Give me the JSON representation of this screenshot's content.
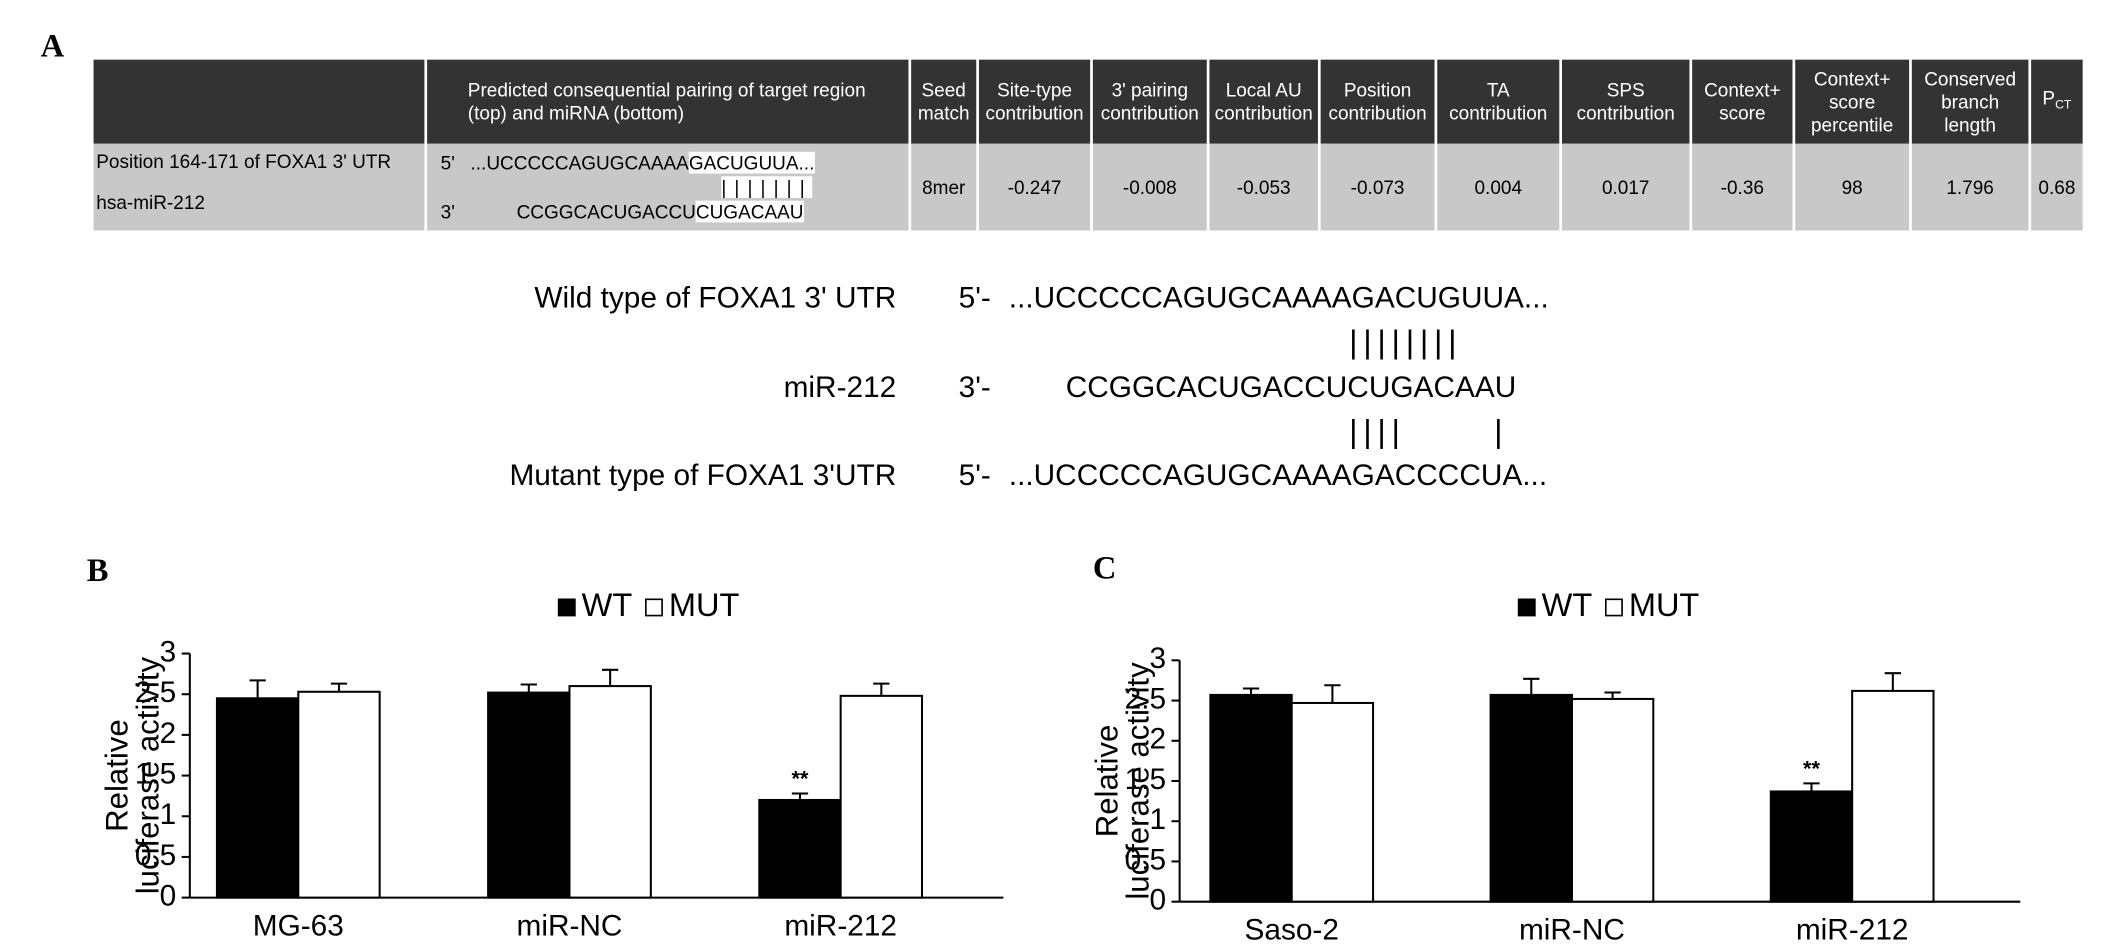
{
  "panel_labels": [
    "A",
    "B",
    "C"
  ],
  "table": {
    "headers": [
      "Predicted consequential pairing of target region (top) and miRNA (bottom)",
      "Seed match",
      "Site-type contribution",
      "3' pairing contribution",
      "Local AU contribution",
      "Position contribution",
      "TA contribution",
      "SPS contribution",
      "Context+ score",
      "Context+ score percentile",
      "Conserved branch length",
      {
        "main": "P",
        "sub": "CT"
      }
    ],
    "row": {
      "target": "Position 164-171 of FOXA1 3' UTR",
      "mirna": "hsa-miR-212",
      "top_end": "5'",
      "top_seq": [
        "...UCCCCCAGUGCAAAA",
        "GACUGUUA..."
      ],
      "pairing": "|||||||",
      "bottom_end": "3'",
      "bottom_seq": [
        "CCGGCACUGACCU",
        "CUGACAAU"
      ],
      "values": [
        "8mer",
        -0.247,
        -0.008,
        -0.053,
        -0.073,
        0.004,
        0.017,
        -0.36,
        98,
        1.796,
        0.68
      ]
    }
  },
  "alignment": [
    {
      "label": "Wild type of FOXA1 3' UTR",
      "end": "5'-",
      "seq": "...UCCCCCAGUGCAAAAGACUGUUA..."
    },
    {
      "pairing": "||||||||"
    },
    {
      "label": "miR-212",
      "end": "3'-",
      "seq": "CCGGCACUGACCUCUGACAAU"
    },
    {
      "pairing": "||||      |"
    },
    {
      "label": "Mutant type of FOXA1 3'UTR",
      "end": "5'-",
      "seq": "...UCCCCCAGUGCAAAAGACCCCUA..."
    }
  ],
  "chart_data": [
    {
      "type": "bar",
      "ylabel": [
        "Relative",
        "luciferase activity"
      ],
      "categories": [
        "MG-63",
        "miR-NC",
        "miR-212"
      ],
      "series": [
        {
          "name": "WT",
          "color": "#000000",
          "values": [
            2.45,
            2.52,
            1.2
          ],
          "errors": [
            0.22,
            0.1,
            0.08
          ]
        },
        {
          "name": "MUT",
          "color": "#ffffff",
          "values": [
            2.53,
            2.6,
            2.48
          ],
          "errors": [
            0.1,
            0.2,
            0.15
          ]
        }
      ],
      "annotation": {
        "text": "**",
        "series": "WT",
        "category": "miR-212"
      },
      "ylim": [
        0,
        3
      ],
      "yticks": [
        0,
        0.5,
        1,
        1.5,
        2,
        2.5,
        3
      ]
    },
    {
      "type": "bar",
      "ylabel": [
        "Relative",
        "luciferase activity"
      ],
      "categories": [
        "Saso-2",
        "miR-NC",
        "miR-212"
      ],
      "series": [
        {
          "name": "WT",
          "color": "#000000",
          "values": [
            2.57,
            2.57,
            1.37
          ],
          "errors": [
            0.08,
            0.2,
            0.1
          ]
        },
        {
          "name": "MUT",
          "color": "#ffffff",
          "values": [
            2.47,
            2.52,
            2.62
          ],
          "errors": [
            0.22,
            0.08,
            0.22
          ]
        }
      ],
      "annotation": {
        "text": "**",
        "series": "WT",
        "category": "miR-212"
      },
      "ylim": [
        0,
        3
      ],
      "yticks": [
        0,
        0.5,
        1,
        1.5,
        2,
        2.5,
        3
      ]
    }
  ]
}
